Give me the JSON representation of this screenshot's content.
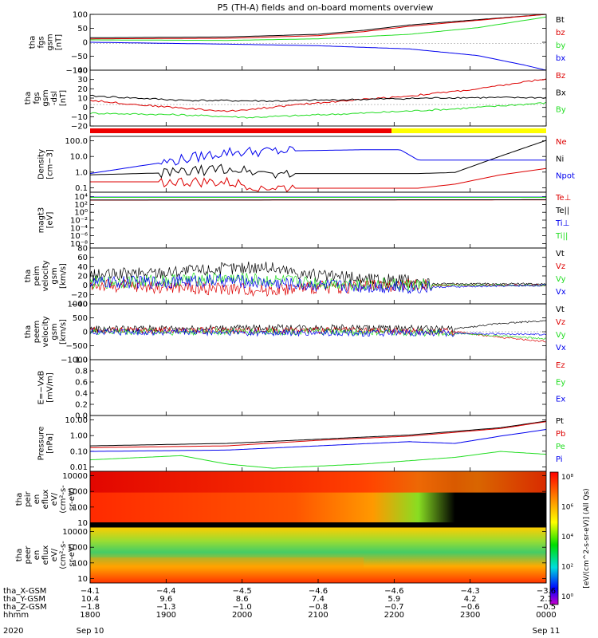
{
  "title": "P5 (TH-A) fields and on-board moments overview",
  "colors": {
    "black": "#000000",
    "red": "#dd0000",
    "green": "#22dd22",
    "blue": "#0000ee",
    "yellow": "#ffff00"
  },
  "chart_data": {
    "type": "line",
    "time_range": [
      "2020-09-10 18:00",
      "2020-09-11 00:00"
    ],
    "panels": [
      {
        "id": "fgs_gsm",
        "ylabel": [
          "tha",
          "fgs",
          "gsm",
          "[nT]"
        ],
        "yticks": [
          "100",
          "50",
          "0",
          "−50",
          "−100"
        ],
        "ylim": [
          -100,
          110
        ],
        "scale": "linear",
        "series": [
          {
            "name": "Bt",
            "color": "black",
            "t": [
              0,
              0.3,
              0.5,
              0.6,
              0.7,
              1
            ],
            "v": [
              22,
              25,
              35,
              50,
              70,
              110
            ]
          },
          {
            "name": "bz",
            "color": "red",
            "t": [
              0,
              0.3,
              0.5,
              0.6,
              0.7,
              1
            ],
            "v": [
              18,
              20,
              30,
              45,
              65,
              110
            ]
          },
          {
            "name": "by",
            "color": "green",
            "t": [
              0,
              0.3,
              0.5,
              0.7,
              0.85,
              1
            ],
            "v": [
              14,
              12,
              18,
              35,
              60,
              100
            ]
          },
          {
            "name": "bx",
            "color": "blue",
            "t": [
              0,
              0.3,
              0.5,
              0.7,
              0.85,
              0.95,
              1
            ],
            "v": [
              5,
              -2,
              -8,
              -20,
              -45,
              -80,
              -100
            ]
          }
        ]
      },
      {
        "id": "fgs_gsm_dsl",
        "ylabel": [
          "tha",
          "fgs",
          "gsm",
          "-dsl",
          "[nT]"
        ],
        "yticks": [
          "40",
          "30",
          "20",
          "10",
          "0",
          "−10",
          "−20"
        ],
        "ylim": [
          -25,
          40
        ],
        "scale": "linear",
        "series": [
          {
            "name": "Bz",
            "color": "red",
            "t": [
              0,
              0.1,
              0.3,
              0.4,
              0.5,
              0.6,
              0.7,
              0.85,
              1
            ],
            "v": [
              5,
              0,
              -8,
              -3,
              2,
              6,
              10,
              18,
              30
            ]
          },
          {
            "name": "Bx",
            "color": "black",
            "t": [
              0,
              0.2,
              0.4,
              0.6,
              0.8,
              1
            ],
            "v": [
              10,
              5,
              4,
              6,
              8,
              8
            ]
          },
          {
            "name": "By",
            "color": "green",
            "t": [
              0,
              0.2,
              0.35,
              0.6,
              0.8,
              1
            ],
            "v": [
              -10,
              -12,
              -15,
              -10,
              -5,
              2
            ]
          }
        ]
      },
      {
        "id": "density",
        "ylabel": [
          "Density",
          "[cm−3]"
        ],
        "yticks": [
          "100.0",
          "10.0",
          "1.0",
          "0.1"
        ],
        "ylim": [
          0.02,
          300
        ],
        "scale": "log",
        "series": [
          {
            "name": "Ne",
            "color": "red",
            "t": [
              0,
              0.15,
              0.3,
              0.4,
              0.6,
              0.72,
              0.8,
              0.9,
              1
            ],
            "v": [
              0.12,
              0.12,
              0.1,
              0.04,
              0.04,
              0.04,
              0.08,
              0.4,
              1.2
            ]
          },
          {
            "name": "Ni",
            "color": "black",
            "t": [
              0,
              0.2,
              0.3,
              0.4,
              0.6,
              0.72,
              0.8,
              0.9,
              1
            ],
            "v": [
              0.4,
              0.6,
              1.2,
              0.5,
              0.5,
              0.5,
              0.6,
              10,
              150
            ]
          },
          {
            "name": "Npot",
            "color": "blue",
            "t": [
              0,
              0.15,
              0.3,
              0.45,
              0.6,
              0.68,
              0.72,
              0.8,
              1
            ],
            "v": [
              0.5,
              3,
              20,
              25,
              30,
              30,
              5,
              5,
              5
            ]
          }
        ]
      },
      {
        "id": "magt3",
        "ylabel": [
          "magt3",
          "[eV]"
        ],
        "yticks": [
          "10⁴",
          "10²",
          "10⁰",
          "10⁻²",
          "10⁻⁴",
          "10⁻⁶",
          "10⁻⁸"
        ],
        "ylim": [
          1e-09,
          100000
        ],
        "scale": "log",
        "series": [
          {
            "name": "Te⊥",
            "color": "red",
            "t": [
              0,
              1
            ],
            "v": [
              1000,
              1200
            ]
          },
          {
            "name": "Te||",
            "color": "black",
            "t": [
              0,
              1
            ],
            "v": [
              1100,
              1300
            ]
          },
          {
            "name": "Ti⊥",
            "color": "blue",
            "t": [
              0,
              1
            ],
            "v": [
              6000,
              6000
            ]
          },
          {
            "name": "Ti||",
            "color": "green",
            "t": [
              0,
              1
            ],
            "v": [
              5000,
              5000
            ]
          }
        ]
      },
      {
        "id": "peim",
        "ylabel": [
          "tha",
          "peim",
          "velocity",
          "gsm",
          "[km/s]"
        ],
        "yticks": [
          "80",
          "60",
          "40",
          "20",
          "0",
          "−20",
          "−40"
        ],
        "ylim": [
          -40,
          80
        ],
        "scale": "linear",
        "series": [
          {
            "name": "Vt",
            "color": "black",
            "t": [
              0,
              0.2,
              0.38,
              0.5,
              0.68,
              0.75,
              1
            ],
            "v": [
              20,
              30,
              40,
              20,
              10,
              3,
              3
            ]
          },
          {
            "name": "Vz",
            "color": "red",
            "t": [
              0,
              0.2,
              0.38,
              0.5,
              0.7,
              1
            ],
            "v": [
              0,
              -5,
              -10,
              -5,
              0,
              0
            ]
          },
          {
            "name": "Vy",
            "color": "green",
            "t": [
              0,
              0.3,
              0.5,
              0.7,
              1
            ],
            "v": [
              5,
              15,
              5,
              0,
              0
            ]
          },
          {
            "name": "Vx",
            "color": "blue",
            "t": [
              0,
              0.3,
              0.5,
              0.7,
              1
            ],
            "v": [
              5,
              10,
              0,
              -5,
              0
            ]
          }
        ]
      },
      {
        "id": "peem",
        "ylabel": [
          "tha",
          "peem",
          "velocity",
          "gsm",
          "[km/s]"
        ],
        "yticks": [
          "1000",
          "500",
          "0",
          "−500",
          "−1000"
        ],
        "ylim": [
          -1000,
          1000
        ],
        "scale": "linear",
        "series": [
          {
            "name": "Vt",
            "color": "black",
            "t": [
              0,
              0.5,
              0.8,
              0.9,
              1
            ],
            "v": [
              100,
              150,
              100,
              300,
              400
            ]
          },
          {
            "name": "Vz",
            "color": "red",
            "t": [
              0,
              0.5,
              0.8,
              0.9,
              1
            ],
            "v": [
              50,
              50,
              0,
              -200,
              -350
            ]
          },
          {
            "name": "Vy",
            "color": "green",
            "t": [
              0,
              0.5,
              0.8,
              0.9,
              1
            ],
            "v": [
              0,
              0,
              -50,
              -150,
              -250
            ]
          },
          {
            "name": "Vx",
            "color": "blue",
            "t": [
              0,
              0.5,
              0.8,
              1
            ],
            "v": [
              0,
              -50,
              -50,
              -100
            ]
          }
        ]
      },
      {
        "id": "efield",
        "ylabel": [
          "E=−VxB",
          "[mV/m]"
        ],
        "yticks": [
          "1.0",
          "0.8",
          "0.6",
          "0.4",
          "0.2",
          "0.0"
        ],
        "ylim": [
          0,
          1
        ],
        "scale": "linear",
        "series": [
          {
            "name": "Ez",
            "color": "red",
            "t": [],
            "v": []
          },
          {
            "name": "Ey",
            "color": "green",
            "t": [],
            "v": []
          },
          {
            "name": "Ex",
            "color": "blue",
            "t": [],
            "v": []
          }
        ]
      },
      {
        "id": "pressure",
        "ylabel": [
          "Pressure",
          "[nPa]"
        ],
        "yticks": [
          "10.00",
          "1.00",
          "0.10",
          "0.01"
        ],
        "ylim": [
          0.003,
          30
        ],
        "scale": "log",
        "series": [
          {
            "name": "Pt",
            "color": "black",
            "t": [
              0,
              0.3,
              0.5,
              0.7,
              0.9,
              1
            ],
            "v": [
              0.2,
              0.3,
              0.6,
              1.2,
              4,
              12
            ]
          },
          {
            "name": "Pb",
            "color": "red",
            "t": [
              0,
              0.3,
              0.5,
              0.7,
              0.9,
              1
            ],
            "v": [
              0.15,
              0.2,
              0.5,
              1,
              3.5,
              11
            ]
          },
          {
            "name": "Pe",
            "color": "green",
            "t": [
              0,
              0.2,
              0.3,
              0.4,
              0.6,
              0.8,
              0.9,
              1
            ],
            "v": [
              0.02,
              0.04,
              0.01,
              0.005,
              0.01,
              0.03,
              0.08,
              0.05
            ]
          },
          {
            "name": "Pi",
            "color": "blue",
            "t": [
              0,
              0.3,
              0.5,
              0.7,
              0.8,
              0.9,
              1
            ],
            "v": [
              0.08,
              0.1,
              0.2,
              0.4,
              0.3,
              1,
              3
            ]
          }
        ]
      },
      {
        "id": "peir",
        "ylabel": [
          "tha",
          "peir",
          "en",
          "eflux",
          "eV/",
          "(cm²-s-",
          "sr-eV)"
        ],
        "yticks": [
          "10000",
          "1000",
          "100",
          "10"
        ],
        "ylim": [
          5,
          20000
        ],
        "scale": "log",
        "spectrogram": true
      },
      {
        "id": "peer",
        "ylabel": [
          "tha",
          "peer",
          "en",
          "eflux",
          "eV/",
          "(cm²-s-",
          "sr-eV)"
        ],
        "yticks": [
          "10000",
          "1000",
          "100",
          "10"
        ],
        "ylim": [
          5,
          20000
        ],
        "scale": "log",
        "spectrogram": true
      }
    ],
    "colorbar": {
      "label": "[eV/(cm^2-s-sr-eV)] (All Qs)",
      "ticks": [
        "10⁸",
        "10⁶",
        "10⁴",
        "10²",
        "10⁰"
      ]
    },
    "ephemeris": [
      {
        "label": "tha_X-GSM",
        "values": [
          "−4.1",
          "−4.4",
          "−4.5",
          "−4.6",
          "−4.6",
          "−4.3",
          "−3.6"
        ]
      },
      {
        "label": "tha_Y-GSM",
        "values": [
          "10.4",
          "9.6",
          "8.6",
          "7.4",
          "5.9",
          "4.2",
          "2.1"
        ]
      },
      {
        "label": "tha_Z-GSM",
        "values": [
          "−1.8",
          "−1.3",
          "−1.0",
          "−0.8",
          "−0.7",
          "−0.6",
          "−0.5"
        ]
      },
      {
        "label": "hhmm",
        "values": [
          "1800",
          "1900",
          "2000",
          "2100",
          "2200",
          "2300",
          "0000"
        ]
      }
    ],
    "date_labels": {
      "year": "2020",
      "start": "Sep 10",
      "end": "Sep 11"
    }
  }
}
